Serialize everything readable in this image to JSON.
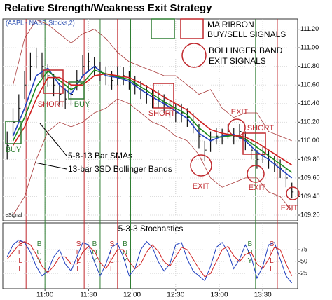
{
  "chart_data": [
    {
      "type": "ohlc",
      "title": "Relative Strength/Weakness Exit Strategy",
      "subtitle": "(AAPL - NASD Stocks,2)",
      "source": "eSignal",
      "xlim": [
        631,
        834
      ],
      "ylim": [
        109.14,
        111.31
      ],
      "yticks": [
        {
          "value": 109.2,
          "label": "109.20"
        },
        {
          "value": 109.4,
          "label": "109.40"
        },
        {
          "value": 109.6,
          "label": "109.60"
        },
        {
          "value": 109.8,
          "label": "109.80"
        },
        {
          "value": 110.0,
          "label": "110.00"
        },
        {
          "value": 110.2,
          "label": "110.20"
        },
        {
          "value": 110.4,
          "label": "110.40"
        },
        {
          "value": 110.6,
          "label": "110.60"
        },
        {
          "value": 110.8,
          "label": "110.80"
        },
        {
          "value": 111.0,
          "label": "111.00"
        },
        {
          "value": 111.2,
          "label": "111.20"
        }
      ],
      "grid": true,
      "bar_color": "#111111",
      "x": [
        634,
        638,
        642,
        646,
        650,
        654,
        658,
        662,
        666,
        670,
        674,
        678,
        682,
        686,
        690,
        694,
        698,
        702,
        706,
        710,
        714,
        718,
        722,
        726,
        730,
        734,
        738,
        742,
        746,
        750,
        754,
        758,
        762,
        766,
        770,
        774,
        778,
        782,
        786,
        790,
        794,
        798,
        802,
        806,
        810,
        814,
        818,
        822,
        826,
        830
      ],
      "high": [
        110.1,
        110.35,
        110.5,
        110.75,
        110.95,
        111.0,
        110.95,
        110.82,
        110.72,
        110.62,
        110.56,
        110.62,
        110.76,
        110.92,
        110.95,
        110.9,
        110.85,
        110.8,
        110.75,
        110.8,
        110.79,
        110.75,
        110.7,
        110.64,
        110.6,
        110.55,
        110.54,
        110.5,
        110.44,
        110.4,
        110.39,
        110.35,
        110.3,
        110.18,
        110.0,
        110.1,
        110.14,
        110.13,
        110.18,
        110.14,
        110.18,
        110.1,
        110.0,
        109.9,
        109.94,
        109.9,
        109.84,
        109.8,
        109.7,
        109.55
      ],
      "low": [
        109.8,
        110.05,
        110.2,
        110.45,
        110.65,
        110.78,
        110.68,
        110.58,
        110.48,
        110.38,
        110.34,
        110.38,
        110.54,
        110.68,
        110.74,
        110.7,
        110.64,
        110.6,
        110.55,
        110.6,
        110.6,
        110.55,
        110.5,
        110.45,
        110.4,
        110.35,
        110.35,
        110.3,
        110.25,
        110.2,
        110.2,
        110.15,
        110.08,
        109.92,
        109.78,
        109.88,
        109.96,
        109.96,
        110.02,
        109.96,
        110.02,
        109.9,
        109.8,
        109.7,
        109.76,
        109.7,
        109.66,
        109.6,
        109.5,
        109.38
      ],
      "close": [
        109.95,
        110.2,
        110.35,
        110.6,
        110.8,
        110.9,
        110.8,
        110.7,
        110.6,
        110.5,
        110.45,
        110.5,
        110.65,
        110.8,
        110.85,
        110.8,
        110.75,
        110.7,
        110.65,
        110.7,
        110.7,
        110.65,
        110.6,
        110.55,
        110.5,
        110.45,
        110.45,
        110.4,
        110.35,
        110.3,
        110.3,
        110.25,
        110.2,
        110.05,
        109.9,
        110.0,
        110.05,
        110.05,
        110.1,
        110.05,
        110.1,
        110.0,
        109.9,
        109.8,
        109.85,
        109.8,
        109.75,
        109.7,
        109.6,
        109.45
      ],
      "overlays": {
        "x": [
          638,
          646,
          654,
          662,
          670,
          678,
          686,
          694,
          702,
          710,
          718,
          726,
          734,
          742,
          750,
          758,
          766,
          774,
          782,
          790,
          798,
          806,
          814,
          822,
          830
        ],
        "series": [
          {
            "color": "#1f3fbf",
            "values": [
              110.05,
              110.35,
              110.7,
              110.78,
              110.6,
              110.5,
              110.7,
              110.8,
              110.7,
              110.68,
              110.64,
              110.55,
              110.47,
              110.4,
              110.32,
              110.24,
              110.08,
              110.0,
              110.05,
              110.07,
              110.0,
              109.88,
              109.8,
              109.7,
              109.6
            ]
          },
          {
            "color": "#1a8a1a",
            "values": [
              110.0,
              110.25,
              110.58,
              110.75,
              110.65,
              110.55,
              110.62,
              110.76,
              110.72,
              110.69,
              110.66,
              110.58,
              110.5,
              110.42,
              110.35,
              110.28,
              110.14,
              110.04,
              110.04,
              110.06,
              110.02,
              109.93,
              109.84,
              109.75,
              109.66
            ]
          },
          {
            "color": "#d02020",
            "values": [
              109.95,
              110.15,
              110.45,
              110.68,
              110.68,
              110.6,
              110.6,
              110.7,
              110.72,
              110.7,
              110.68,
              110.62,
              110.55,
              110.47,
              110.4,
              110.33,
              110.22,
              110.12,
              110.08,
              110.06,
              110.04,
              109.98,
              109.9,
              109.82,
              109.74
            ]
          },
          {
            "color": "#a83a3a",
            "values": [
              110.6,
              111.1,
              111.3,
              111.25,
              111.15,
              111.05,
              111.15,
              111.2,
              111.1,
              110.95,
              110.85,
              110.8,
              110.75,
              110.7,
              110.7,
              110.6,
              110.5,
              110.55,
              110.35,
              110.25,
              110.3,
              110.3,
              110.1,
              110.05,
              110.0
            ]
          },
          {
            "color": "#a83a3a",
            "values": [
              109.2,
              109.4,
              109.8,
              110.1,
              110.2,
              110.15,
              110.2,
              110.3,
              110.35,
              110.45,
              110.4,
              110.3,
              110.2,
              110.15,
              110.05,
              110.0,
              109.85,
              109.6,
              109.5,
              109.55,
              109.6,
              109.6,
              109.45,
              109.4,
              109.25
            ]
          }
        ]
      },
      "annotations": {
        "legend": [
          "MA RIBBON",
          "BUY/SELL SIGNALS",
          "BOLLINGER BAND",
          "EXIT SIGNALS"
        ],
        "sma_label": "5-8-13 Bar SMAs",
        "bb_label": "13-bar 3SD Bollinger Bands",
        "signals": [
          "BUY",
          "SHORT",
          "BUY",
          "SHORT",
          "EXIT",
          "EXIT",
          "SHORT",
          "EXIT",
          "EXIT"
        ]
      }
    },
    {
      "type": "line",
      "title": "5-3-3 Stochastics",
      "xlim": [
        631,
        834
      ],
      "ylim": [
        -7,
        131
      ],
      "xticks": [
        {
          "value": 660,
          "label": "11:00"
        },
        {
          "value": 690,
          "label": "11:30"
        },
        {
          "value": 720,
          "label": "12:00"
        },
        {
          "value": 750,
          "label": "12:30"
        },
        {
          "value": 780,
          "label": "13:00"
        },
        {
          "value": 810,
          "label": "13:30"
        }
      ],
      "yticks": [
        25,
        50,
        75
      ],
      "grid": true,
      "x": [
        634,
        638,
        642,
        646,
        650,
        654,
        658,
        662,
        666,
        670,
        674,
        678,
        682,
        686,
        690,
        694,
        698,
        702,
        706,
        710,
        714,
        718,
        722,
        726,
        730,
        734,
        738,
        742,
        746,
        750,
        754,
        758,
        762,
        766,
        770,
        774,
        778,
        782,
        786,
        790,
        794,
        798,
        802,
        806,
        810,
        814,
        818,
        822,
        826,
        830
      ],
      "series": [
        {
          "color": "#1f3fbf",
          "values": [
            60,
            85,
            95,
            90,
            70,
            40,
            20,
            30,
            60,
            75,
            45,
            30,
            60,
            90,
            85,
            50,
            20,
            45,
            80,
            88,
            60,
            20,
            35,
            75,
            92,
            80,
            50,
            30,
            45,
            85,
            90,
            55,
            30,
            20,
            10,
            40,
            80,
            90,
            70,
            35,
            55,
            85,
            60,
            15,
            40,
            85,
            90,
            55,
            20,
            5
          ]
        },
        {
          "color": "#d02020",
          "values": [
            55,
            70,
            85,
            92,
            85,
            65,
            40,
            27,
            40,
            60,
            60,
            45,
            45,
            70,
            82,
            72,
            48,
            35,
            55,
            75,
            75,
            50,
            35,
            45,
            70,
            85,
            72,
            50,
            40,
            60,
            80,
            75,
            55,
            35,
            18,
            25,
            50,
            75,
            82,
            62,
            50,
            65,
            70,
            45,
            35,
            55,
            80,
            75,
            45,
            20
          ]
        }
      ],
      "signals": {
        "x": [
          647,
          660,
          687,
          698,
          710,
          719,
          805,
          820
        ],
        "labels": [
          "SELL",
          "BUY",
          "SELL",
          "BUY",
          "SELL",
          "BUY",
          "BUY",
          "SELL"
        ],
        "colors": [
          "#c0282d",
          "#2e7d32",
          "#c0282d",
          "#2e7d32",
          "#c0282d",
          "#2e7d32",
          "#2e7d32",
          "#c0282d"
        ]
      }
    }
  ]
}
